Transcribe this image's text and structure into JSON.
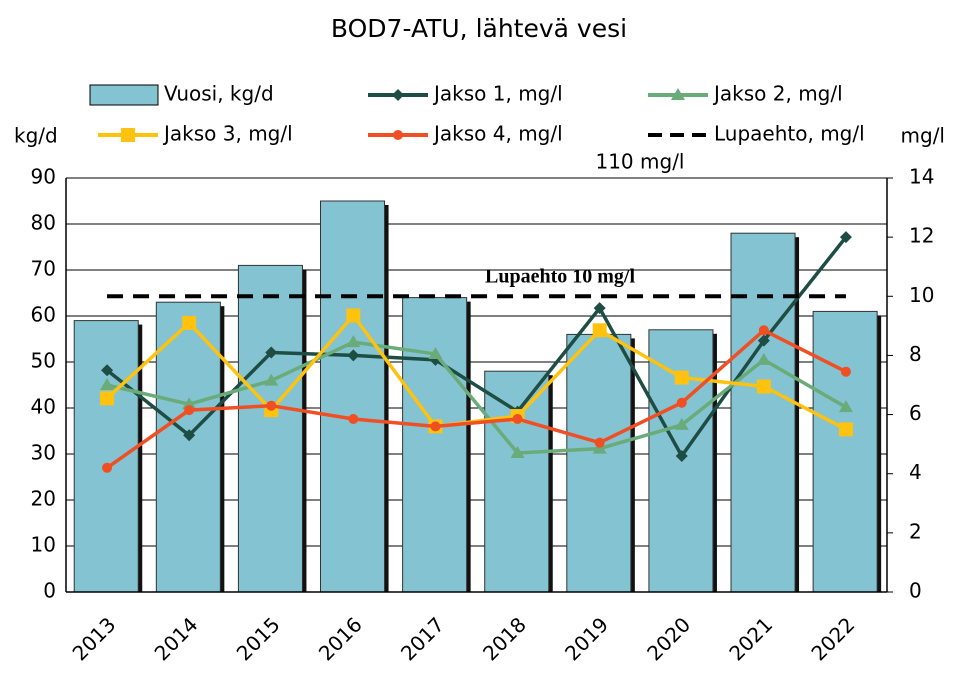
{
  "chart_data": {
    "type": "bar",
    "title": "BOD7-ATU, lähtevä vesi",
    "ylabel": "kg/d",
    "y2label": "mg/l",
    "categories": [
      "2013",
      "2014",
      "2015",
      "2016",
      "2017",
      "2018",
      "2019",
      "2020",
      "2021",
      "2022"
    ],
    "series": [
      {
        "name": "Vuosi, kg/d",
        "type": "bar",
        "color": "#84c3d1",
        "values": [
          59,
          63,
          71,
          85,
          64,
          48,
          56,
          57,
          78,
          61
        ]
      },
      {
        "name": "Jakso 1, mg/l",
        "type": "line",
        "axis": "y2",
        "marker": "diamond",
        "color": "#1e4d44",
        "values": [
          7.5,
          5.3,
          8.1,
          8.0,
          7.85,
          6.1,
          9.6,
          4.6,
          8.5,
          12.0
        ]
      },
      {
        "name": "Jakso 2, mg/l",
        "type": "line",
        "axis": "y2",
        "marker": "triangle",
        "color": "#6aab7a",
        "values": [
          7.0,
          6.35,
          7.15,
          8.45,
          8.05,
          4.7,
          4.85,
          5.65,
          7.85,
          6.25
        ]
      },
      {
        "name": "Jakso 3, mg/l",
        "type": "line",
        "axis": "y2",
        "marker": "square",
        "color": "#ffc20e",
        "values": [
          6.55,
          9.1,
          6.15,
          9.35,
          5.6,
          5.95,
          8.85,
          7.25,
          6.95,
          5.5
        ]
      },
      {
        "name": "Jakso 4, mg/l",
        "type": "line",
        "axis": "y2",
        "marker": "circle",
        "color": "#f04e23",
        "values": [
          4.2,
          6.15,
          6.3,
          5.85,
          5.6,
          5.85,
          5.05,
          6.4,
          8.85,
          7.45
        ]
      },
      {
        "name": "Lupaehto, mg/l",
        "type": "line",
        "axis": "y2",
        "dashed": true,
        "color": "#000000",
        "values": [
          10,
          10,
          10,
          10,
          10,
          10,
          10,
          10,
          10,
          10
        ]
      }
    ],
    "annotations": [
      "110 mg/l",
      "Lupaehto 10 mg/l"
    ],
    "ylim": [
      0,
      90
    ],
    "yticks": [
      0,
      10,
      20,
      30,
      40,
      50,
      60,
      70,
      80,
      90
    ],
    "y2lim": [
      0,
      14
    ],
    "y2ticks": [
      0,
      2,
      4,
      6,
      8,
      10,
      12,
      14
    ],
    "grid": true
  }
}
